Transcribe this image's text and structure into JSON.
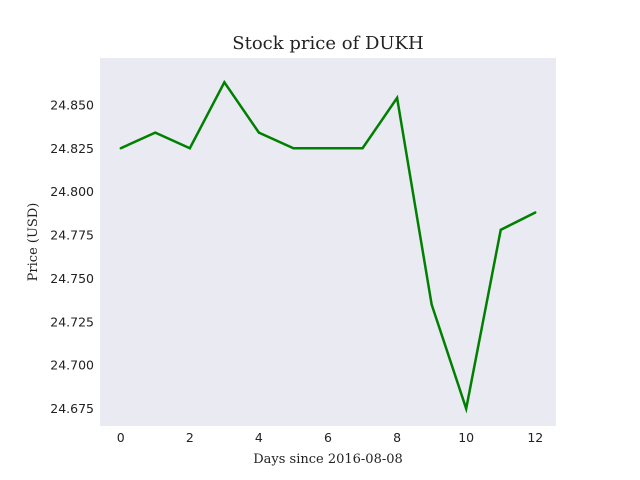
{
  "chart_data": {
    "type": "line",
    "title": "Stock price of DUKH",
    "xlabel": "Days since 2016-08-08",
    "ylabel": "Price (USD)",
    "xlim": [
      -0.6,
      12.6
    ],
    "ylim": [
      24.665,
      24.877
    ],
    "x_ticks": [
      0,
      2,
      4,
      6,
      8,
      10,
      12
    ],
    "y_ticks": [
      24.675,
      24.7,
      24.725,
      24.75,
      24.775,
      24.8,
      24.825,
      24.85
    ],
    "y_tick_labels": [
      "24.675",
      "24.700",
      "24.725",
      "24.750",
      "24.775",
      "24.800",
      "24.825",
      "24.850"
    ],
    "grid": false,
    "background_color": "#eaeaf2",
    "series": [
      {
        "color": "#008000",
        "x": [
          0,
          1,
          2,
          3,
          4,
          5,
          6,
          7,
          8,
          9,
          10,
          11,
          12
        ],
        "values": [
          24.825,
          24.834,
          24.825,
          24.863,
          24.834,
          24.825,
          24.825,
          24.825,
          24.854,
          24.735,
          24.675,
          24.778,
          24.788
        ]
      }
    ]
  }
}
